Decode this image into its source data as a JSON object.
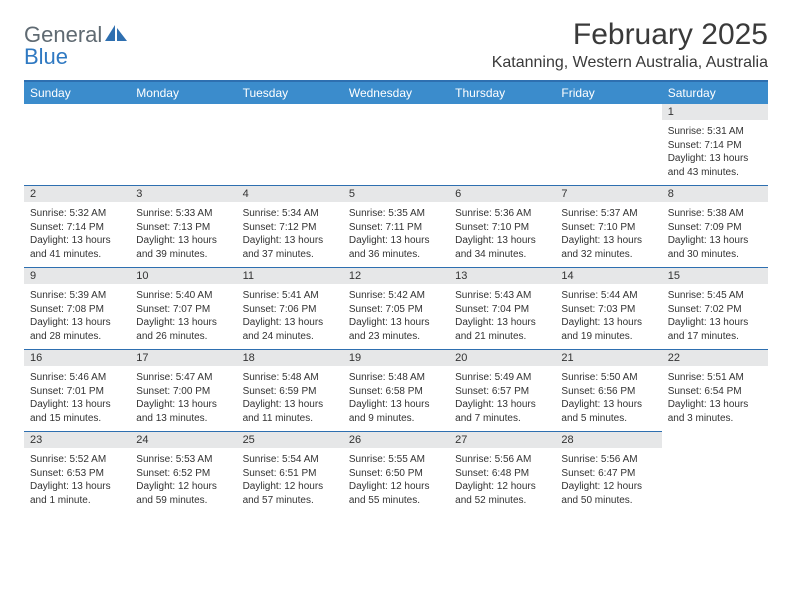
{
  "logo": {
    "word1": "General",
    "word2": "Blue"
  },
  "title": "February 2025",
  "location": "Katanning, Western Australia, Australia",
  "colors": {
    "header_bar": "#3b8ccc",
    "rule": "#2e6fb0",
    "daynum_bg": "#e6e7e8",
    "text": "#333333",
    "logo_gray": "#5f6a72",
    "logo_blue": "#2f79c2"
  },
  "weekdays": [
    "Sunday",
    "Monday",
    "Tuesday",
    "Wednesday",
    "Thursday",
    "Friday",
    "Saturday"
  ],
  "leading_blanks": 6,
  "days": [
    {
      "n": "1",
      "sr": "5:31 AM",
      "ss": "7:14 PM",
      "dl": "13 hours and 43 minutes."
    },
    {
      "n": "2",
      "sr": "5:32 AM",
      "ss": "7:14 PM",
      "dl": "13 hours and 41 minutes."
    },
    {
      "n": "3",
      "sr": "5:33 AM",
      "ss": "7:13 PM",
      "dl": "13 hours and 39 minutes."
    },
    {
      "n": "4",
      "sr": "5:34 AM",
      "ss": "7:12 PM",
      "dl": "13 hours and 37 minutes."
    },
    {
      "n": "5",
      "sr": "5:35 AM",
      "ss": "7:11 PM",
      "dl": "13 hours and 36 minutes."
    },
    {
      "n": "6",
      "sr": "5:36 AM",
      "ss": "7:10 PM",
      "dl": "13 hours and 34 minutes."
    },
    {
      "n": "7",
      "sr": "5:37 AM",
      "ss": "7:10 PM",
      "dl": "13 hours and 32 minutes."
    },
    {
      "n": "8",
      "sr": "5:38 AM",
      "ss": "7:09 PM",
      "dl": "13 hours and 30 minutes."
    },
    {
      "n": "9",
      "sr": "5:39 AM",
      "ss": "7:08 PM",
      "dl": "13 hours and 28 minutes."
    },
    {
      "n": "10",
      "sr": "5:40 AM",
      "ss": "7:07 PM",
      "dl": "13 hours and 26 minutes."
    },
    {
      "n": "11",
      "sr": "5:41 AM",
      "ss": "7:06 PM",
      "dl": "13 hours and 24 minutes."
    },
    {
      "n": "12",
      "sr": "5:42 AM",
      "ss": "7:05 PM",
      "dl": "13 hours and 23 minutes."
    },
    {
      "n": "13",
      "sr": "5:43 AM",
      "ss": "7:04 PM",
      "dl": "13 hours and 21 minutes."
    },
    {
      "n": "14",
      "sr": "5:44 AM",
      "ss": "7:03 PM",
      "dl": "13 hours and 19 minutes."
    },
    {
      "n": "15",
      "sr": "5:45 AM",
      "ss": "7:02 PM",
      "dl": "13 hours and 17 minutes."
    },
    {
      "n": "16",
      "sr": "5:46 AM",
      "ss": "7:01 PM",
      "dl": "13 hours and 15 minutes."
    },
    {
      "n": "17",
      "sr": "5:47 AM",
      "ss": "7:00 PM",
      "dl": "13 hours and 13 minutes."
    },
    {
      "n": "18",
      "sr": "5:48 AM",
      "ss": "6:59 PM",
      "dl": "13 hours and 11 minutes."
    },
    {
      "n": "19",
      "sr": "5:48 AM",
      "ss": "6:58 PM",
      "dl": "13 hours and 9 minutes."
    },
    {
      "n": "20",
      "sr": "5:49 AM",
      "ss": "6:57 PM",
      "dl": "13 hours and 7 minutes."
    },
    {
      "n": "21",
      "sr": "5:50 AM",
      "ss": "6:56 PM",
      "dl": "13 hours and 5 minutes."
    },
    {
      "n": "22",
      "sr": "5:51 AM",
      "ss": "6:54 PM",
      "dl": "13 hours and 3 minutes."
    },
    {
      "n": "23",
      "sr": "5:52 AM",
      "ss": "6:53 PM",
      "dl": "13 hours and 1 minute."
    },
    {
      "n": "24",
      "sr": "5:53 AM",
      "ss": "6:52 PM",
      "dl": "12 hours and 59 minutes."
    },
    {
      "n": "25",
      "sr": "5:54 AM",
      "ss": "6:51 PM",
      "dl": "12 hours and 57 minutes."
    },
    {
      "n": "26",
      "sr": "5:55 AM",
      "ss": "6:50 PM",
      "dl": "12 hours and 55 minutes."
    },
    {
      "n": "27",
      "sr": "5:56 AM",
      "ss": "6:48 PM",
      "dl": "12 hours and 52 minutes."
    },
    {
      "n": "28",
      "sr": "5:56 AM",
      "ss": "6:47 PM",
      "dl": "12 hours and 50 minutes."
    }
  ],
  "labels": {
    "sunrise": "Sunrise: ",
    "sunset": "Sunset: ",
    "daylight": "Daylight: "
  }
}
